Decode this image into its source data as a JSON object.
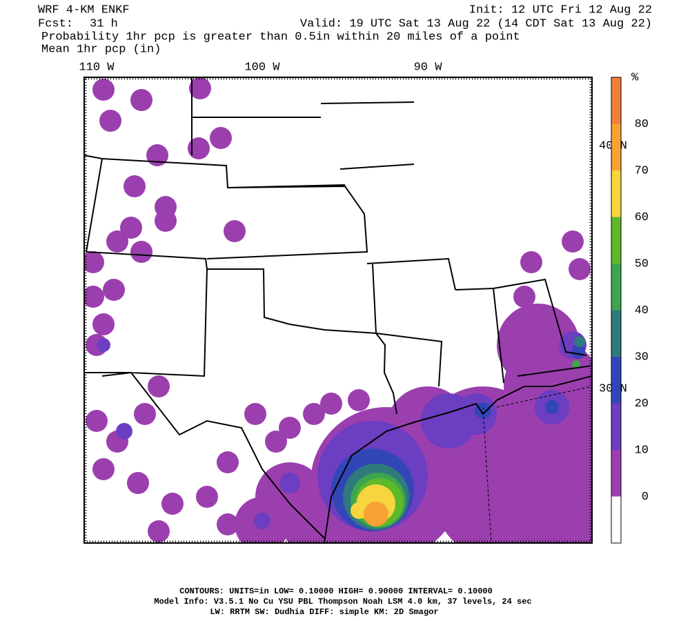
{
  "header": {
    "model": "WRF 4-KM ENKF",
    "init": "Init: 12 UTC Fri 12 Aug 22",
    "fcst_label": "Fcst:",
    "fcst": "31 h",
    "valid": "Valid: 19 UTC Sat 13 Aug 22 (14 CDT Sat 13 Aug 22)",
    "field1": "Probability 1hr pcp is greater than 0.5in within 20 miles of a point",
    "field2": "Mean 1hr pcp (in)"
  },
  "map": {
    "lon_labels": [
      "110 W",
      "100 W",
      "90 W"
    ],
    "lat_labels": [
      "40 N",
      "30 N"
    ]
  },
  "colorbar": {
    "unit": "%",
    "ticks": [
      0,
      10,
      20,
      30,
      40,
      50,
      60,
      70,
      80
    ],
    "colors": [
      "#ffffff",
      "#9b3fae",
      "#6b3ec2",
      "#3346b8",
      "#2f7a7c",
      "#3ea54e",
      "#5db82a",
      "#f7d53e",
      "#f8a236",
      "#f2803a"
    ]
  },
  "footer": {
    "line1": "CONTOURS:  UNITS=in  LOW= 0.10000      HIGH= 0.90000      INTERVAL=  0.10000",
    "line2": "Model Info: V3.5.1    No Cu    YSU PBL  Thompson     Noah LSM  4.0 km,  37 levels,    24 sec",
    "line3": "LW: RRTM SW: Dudhia  DIFF: simple KM: 2D Smagor"
  }
}
